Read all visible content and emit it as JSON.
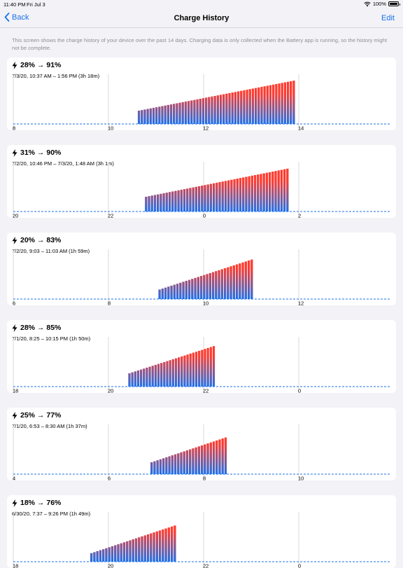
{
  "status_bar": {
    "time": "11:40 PM",
    "date": "Fri Jul 3",
    "battery_text": "100%"
  },
  "nav": {
    "back_label": "Back",
    "title": "Charge History",
    "edit_label": "Edit"
  },
  "intro_text": "This screen shows the charge history of your device over the past 14 days. Charging data is only collected when the Battery app is running, so the history might not be complete.",
  "colors": {
    "accent": "#1a73e8",
    "bar_top": "#ff3b30",
    "bar_bottom": "#1f6fe8",
    "baseline": "#1f6fe8"
  },
  "sessions": [
    {
      "range": "28% → 91%",
      "detail": "7/3/20, 10:37 AM – 1:56 PM (3h 18m)",
      "ticks": [
        "8",
        "10",
        "12",
        "14"
      ],
      "axis_start_hour": 8,
      "start_hour": 10.617,
      "end_hour": 13.933,
      "start_pct": 28,
      "end_pct": 91
    },
    {
      "range": "31% → 90%",
      "detail": "7/2/20, 10:46 PM – 7/3/20, 1:48 AM (3h 1m)",
      "ticks": [
        "20",
        "22",
        "0",
        "2"
      ],
      "axis_start_hour": 20,
      "start_hour": 22.767,
      "end_hour": 25.8,
      "start_pct": 31,
      "end_pct": 90
    },
    {
      "range": "20% → 83%",
      "detail": "7/2/20, 9:03 – 11:03 AM (1h 59m)",
      "ticks": [
        "6",
        "8",
        "10",
        "12"
      ],
      "axis_start_hour": 6,
      "start_hour": 9.05,
      "end_hour": 11.05,
      "start_pct": 20,
      "end_pct": 83
    },
    {
      "range": "28% → 85%",
      "detail": "7/1/20, 8:25 – 10:15 PM (1h 50m)",
      "ticks": [
        "18",
        "20",
        "22",
        "0"
      ],
      "axis_start_hour": 18,
      "start_hour": 20.417,
      "end_hour": 22.25,
      "start_pct": 28,
      "end_pct": 85
    },
    {
      "range": "25% → 77%",
      "detail": "7/1/20, 6:53 – 8:30 AM (1h 37m)",
      "ticks": [
        "4",
        "6",
        "8",
        "10"
      ],
      "axis_start_hour": 4,
      "start_hour": 6.883,
      "end_hour": 8.5,
      "start_pct": 25,
      "end_pct": 77
    },
    {
      "range": "18% → 76%",
      "detail": "6/30/20, 7:37 – 9:26 PM (1h 49m)",
      "ticks": [
        "18",
        "20",
        "22",
        "0"
      ],
      "axis_start_hour": 18,
      "start_hour": 19.617,
      "end_hour": 21.433,
      "start_pct": 18,
      "end_pct": 76
    }
  ]
}
